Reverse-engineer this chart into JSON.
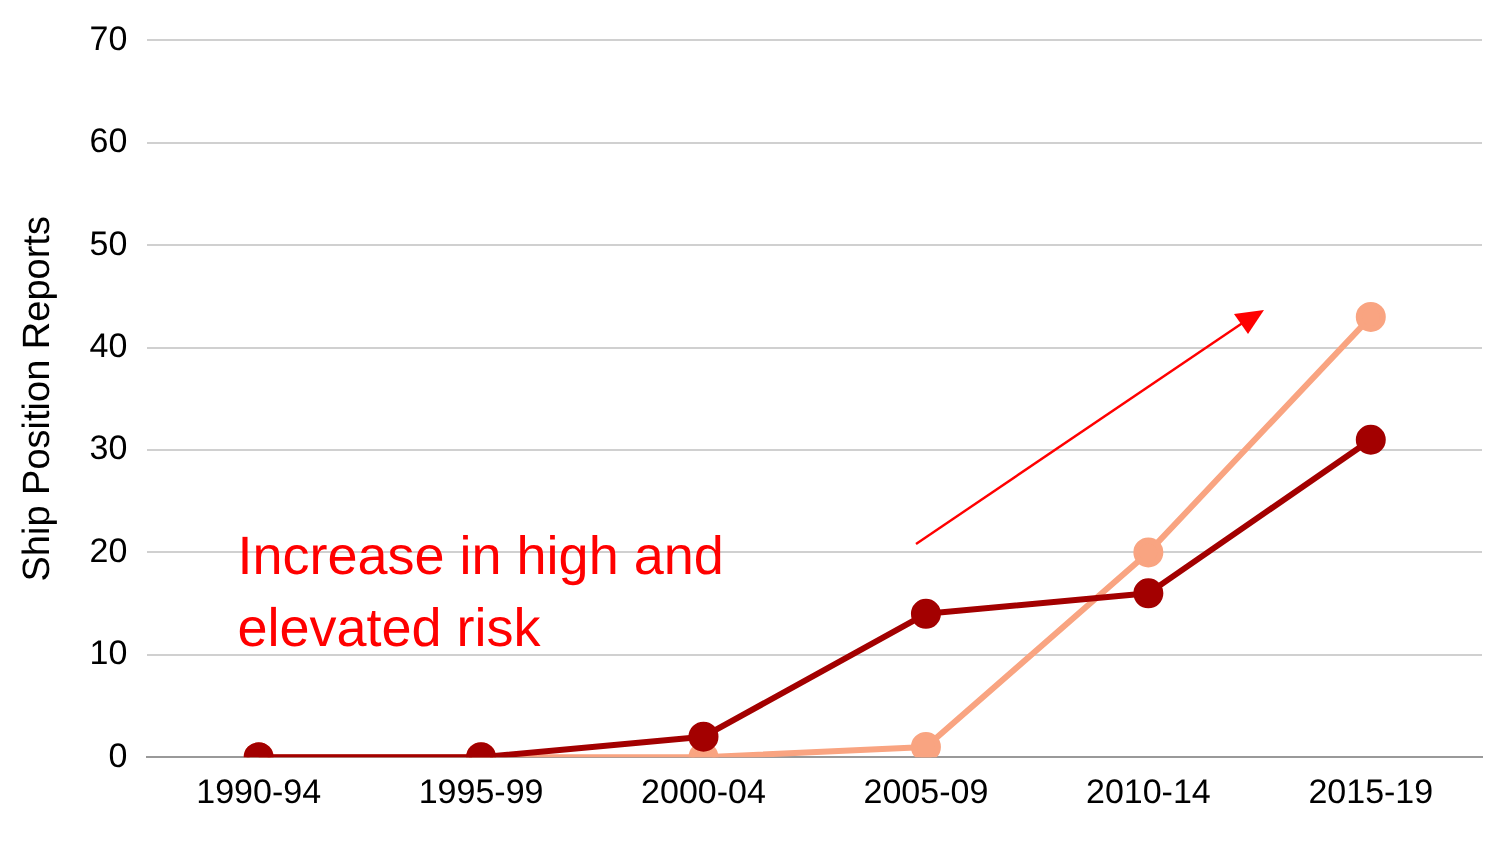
{
  "chart_data": {
    "type": "line",
    "ylabel": "Ship Position Reports",
    "categories": [
      "1990-94",
      "1995-99",
      "2000-04",
      "2005-09",
      "2010-14",
      "2015-19"
    ],
    "series": [
      {
        "color": "#a30000",
        "values": [
          0,
          0,
          2,
          14,
          16,
          31
        ]
      },
      {
        "color": "#f9a481",
        "values": [
          0,
          0,
          0,
          1,
          20,
          43
        ]
      }
    ],
    "ylim": [
      0,
      70
    ],
    "yticks": [
      0,
      10,
      20,
      30,
      40,
      50,
      60,
      70
    ],
    "grid": "y",
    "legend": false,
    "marker": "circle",
    "line_style": "solid",
    "annotations": [
      "Increase in high and elevated risk"
    ]
  }
}
